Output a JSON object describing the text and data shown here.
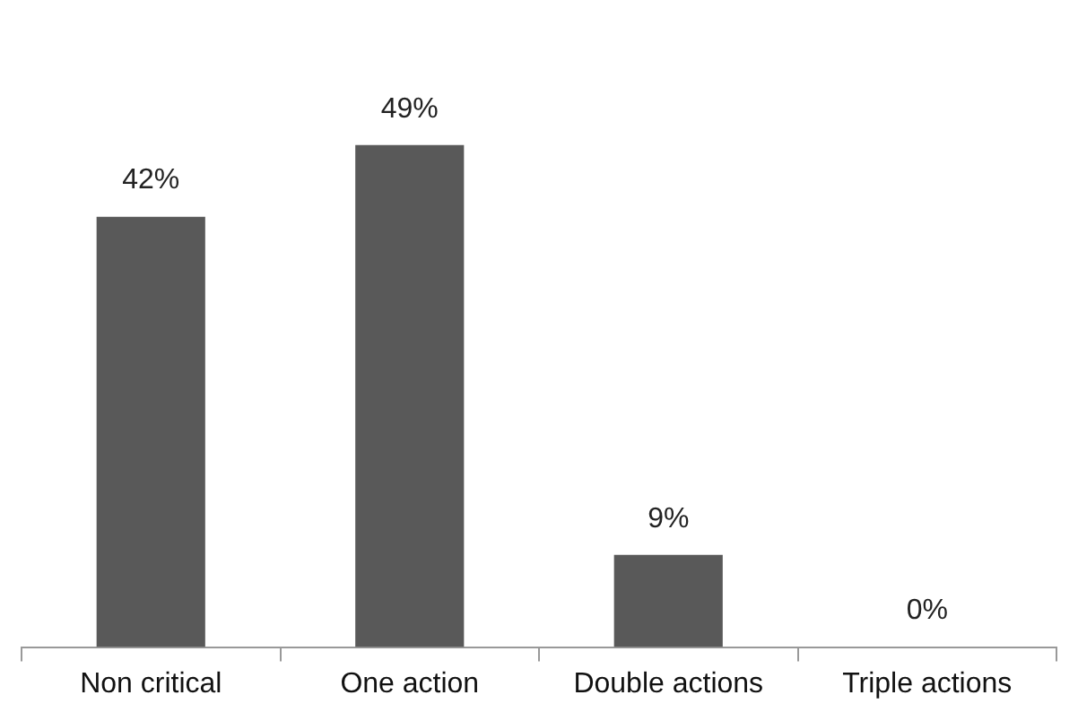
{
  "chart_data": {
    "type": "bar",
    "categories": [
      "Non critical",
      "One action",
      "Double actions",
      "Triple actions"
    ],
    "values": [
      42,
      49,
      9,
      0
    ],
    "value_labels": [
      "42%",
      "49%",
      "9%",
      "0%"
    ],
    "color": "#595959",
    "grid": false,
    "legend": false
  }
}
